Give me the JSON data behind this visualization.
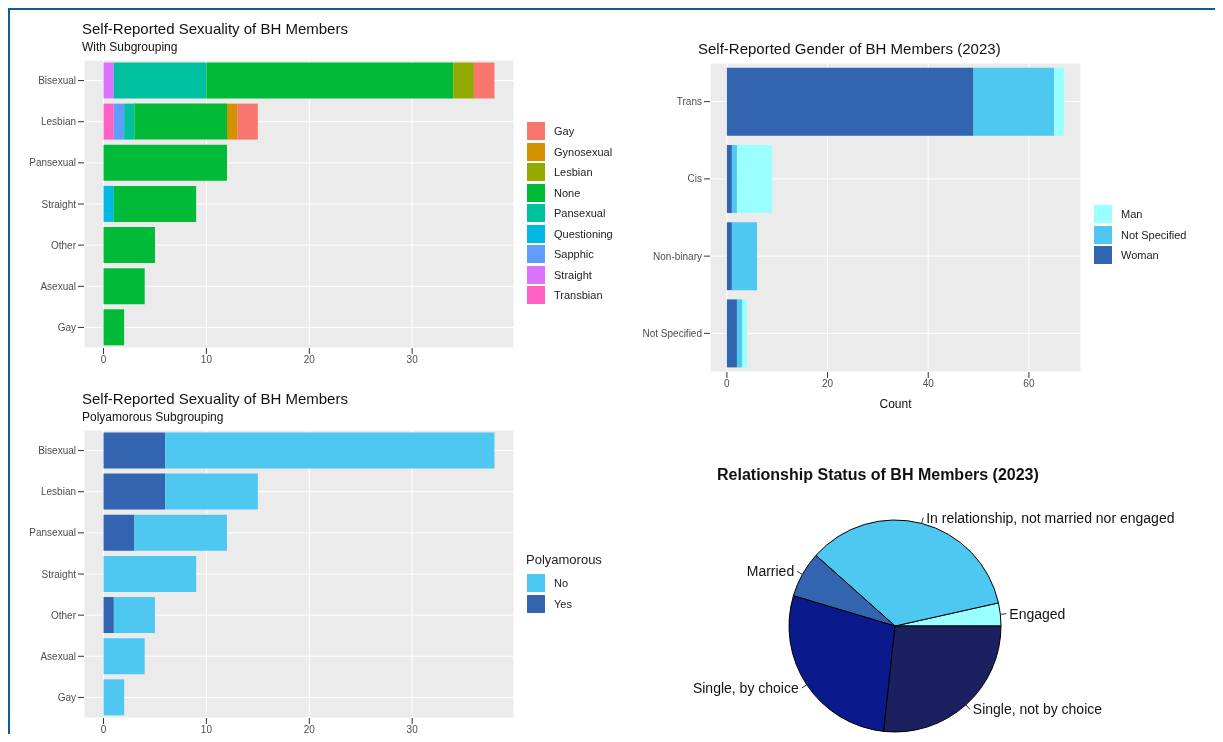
{
  "chart_data": [
    {
      "type": "bar",
      "title": "Self-Reported Sexuality of BH Members",
      "subtitle": "With Subgrouping",
      "orientation": "horizontal",
      "stacked": true,
      "grid": true,
      "legend": "right",
      "categories": [
        "Bisexual",
        "Lesbian",
        "Pansexual",
        "Straight",
        "Other",
        "Asexual",
        "Gay"
      ],
      "xlim": [
        -1.9,
        39.9
      ],
      "xticks": [
        0,
        10,
        20,
        30
      ],
      "series": [
        {
          "name": "Transbian",
          "color": "#ff61c3",
          "values": [
            0,
            1,
            0,
            0,
            0,
            0,
            0
          ]
        },
        {
          "name": "Straight",
          "color": "#db72fb",
          "values": [
            1,
            0,
            0,
            0,
            0,
            0,
            0
          ]
        },
        {
          "name": "Sapphic",
          "color": "#619cff",
          "values": [
            0,
            1,
            0,
            0,
            0,
            0,
            0
          ]
        },
        {
          "name": "Questioning",
          "color": "#00b9e3",
          "values": [
            0,
            0,
            0,
            1,
            0,
            0,
            0
          ]
        },
        {
          "name": "Pansexual",
          "color": "#00c19f",
          "values": [
            9,
            1,
            0,
            0,
            0,
            0,
            0
          ]
        },
        {
          "name": "None",
          "color": "#00ba38",
          "values": [
            24,
            9,
            12,
            8,
            5,
            4,
            2
          ]
        },
        {
          "name": "Lesbian",
          "color": "#93aa00",
          "values": [
            2,
            0,
            0,
            0,
            0,
            0,
            0
          ]
        },
        {
          "name": "Gynosexual",
          "color": "#d39200",
          "values": [
            0,
            1,
            0,
            0,
            0,
            0,
            0
          ]
        },
        {
          "name": "Gay",
          "color": "#f8766d",
          "values": [
            2,
            2,
            0,
            0,
            0,
            0,
            0
          ]
        }
      ]
    },
    {
      "type": "bar",
      "title": "Self-Reported Gender of BH Members (2023)",
      "xlabel": "Count",
      "orientation": "horizontal",
      "stacked": true,
      "grid": true,
      "legend": "right",
      "categories": [
        "Trans",
        "Cis",
        "Non-binary",
        "Not Specified"
      ],
      "xlim": [
        -3.35,
        70.35
      ],
      "xticks": [
        0,
        20,
        40,
        60
      ],
      "series": [
        {
          "name": "Woman",
          "color": "#3264b0",
          "values": [
            49,
            1,
            1,
            2
          ]
        },
        {
          "name": "Not Specified",
          "color": "#4ec8f0",
          "values": [
            16,
            1,
            5,
            1
          ]
        },
        {
          "name": "Man",
          "color": "#99ffff",
          "values": [
            2,
            7,
            0,
            1
          ]
        }
      ]
    },
    {
      "type": "bar",
      "title": "Self-Reported Sexuality of BH Members",
      "subtitle": "Polyamorous Subgrouping",
      "legend_title": "Polyamorous",
      "orientation": "horizontal",
      "stacked": true,
      "grid": true,
      "legend": "right",
      "categories": [
        "Bisexual",
        "Lesbian",
        "Pansexual",
        "Straight",
        "Other",
        "Asexual",
        "Gay"
      ],
      "xlim": [
        -1.9,
        39.9
      ],
      "xticks": [
        0,
        10,
        20,
        30
      ],
      "series": [
        {
          "name": "Yes",
          "color": "#3264b0",
          "values": [
            6,
            6,
            3,
            0,
            1,
            0,
            0
          ]
        },
        {
          "name": "No",
          "color": "#4ec8f0",
          "values": [
            32,
            9,
            9,
            9,
            4,
            4,
            2
          ]
        }
      ]
    },
    {
      "type": "pie",
      "title": "Relationship Status of BH Members (2023)",
      "categories": [
        "Engaged",
        "In relationship, not married nor engaged",
        "Married",
        "Single, by choice",
        "Single, not by choice"
      ],
      "values": [
        3.5,
        34.9,
        7.0,
        27.9,
        26.7
      ],
      "colors": [
        "#99ffff",
        "#4ec8f0",
        "#3264b0",
        "#0a1a8c",
        "#1a2060"
      ]
    }
  ]
}
